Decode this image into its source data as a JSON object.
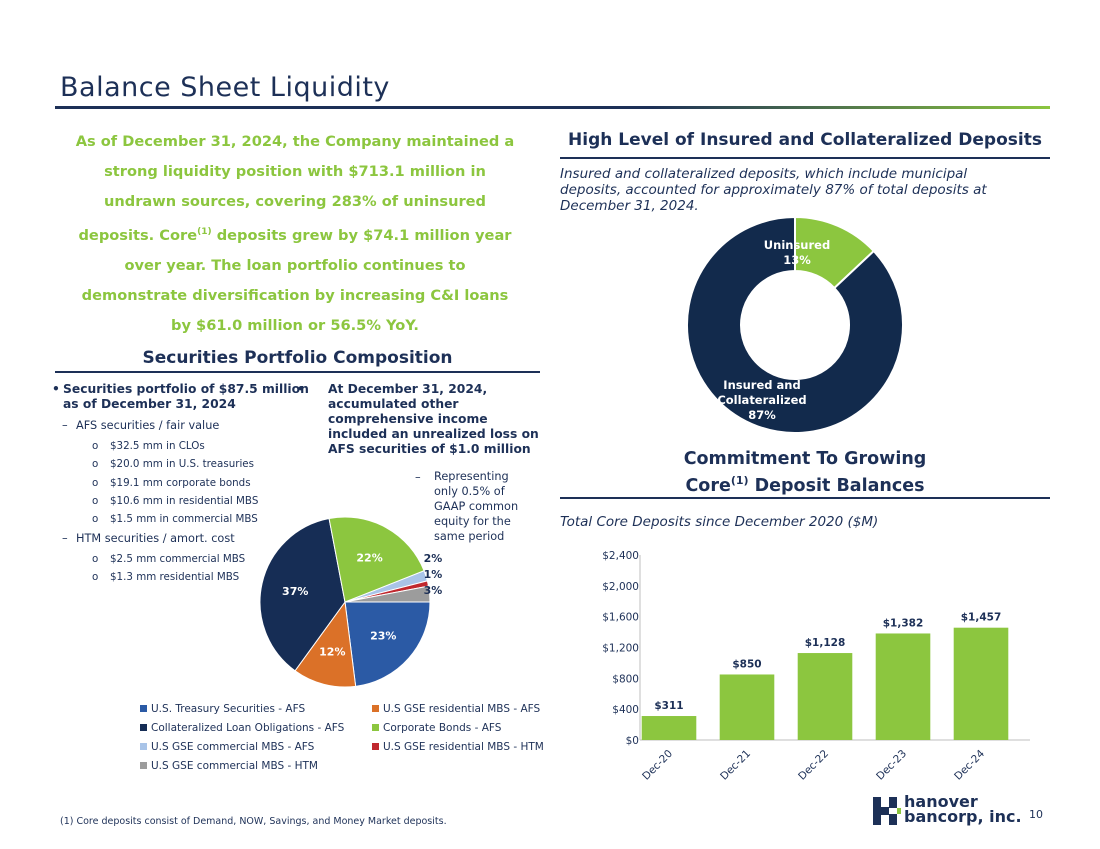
{
  "title": "Balance Sheet Liquidity",
  "intro": {
    "part1": "As of December 31, 2024, the Company maintained a strong liquidity position with $713.1 million in undrawn sources, covering 283% of uninsured deposits. Core",
    "sup": "(1)",
    "part2": " deposits grew by $74.1 million year over year. The loan portfolio continues to demonstrate diversification by increasing C&I loans by $61.0 million or 56.5% YoY."
  },
  "insured": {
    "heading": "High Level of Insured and Collateralized Deposits",
    "description": "Insured and collateralized deposits, which include municipal deposits, accounted for approximately 87% of total deposits at December 31, 2024.",
    "chart_data": {
      "type": "pie",
      "title": "High Level of Insured and Collateralized Deposits",
      "slices": [
        {
          "label": "Uninsured",
          "value": 13,
          "label_text": "13%",
          "color": "#8cc63f"
        },
        {
          "label": "Insured and Collateralized",
          "value": 87,
          "label_text": "87%",
          "color": "#122a4c"
        }
      ]
    },
    "labels": {
      "uninsured_name": "Uninsured",
      "uninsured_pct": "13%",
      "insured_line1": "Insured and",
      "insured_line2": "Collateralized",
      "insured_pct": "87%"
    }
  },
  "securities": {
    "heading": "Securities Portfolio Composition",
    "bullet1_line1": "Securities portfolio of $87.5 million",
    "bullet1_line2": "as of December 31, 2024",
    "afs_header": "AFS securities / fair value",
    "afs_items": [
      "$32.5 mm in CLOs",
      "$20.0 mm in U.S. treasuries",
      "$19.1 mm corporate bonds",
      "$10.6 mm in residential MBS",
      "$1.5 mm in commercial MBS"
    ],
    "htm_header": "HTM securities / amort. cost",
    "htm_items": [
      "$2.5 mm commercial MBS",
      "$1.3 mm residential MBS"
    ],
    "bullet2_lines": [
      "At December 31, 2024,",
      "accumulated other",
      "comprehensive income",
      "included an unrealized loss on",
      "AFS securities of $1.0 million"
    ],
    "bullet2_sub_lines": [
      "Representing",
      "only 0.5% of",
      "GAAP common",
      "equity for the",
      "same period"
    ],
    "bullet_char": "•",
    "dash_char": "–",
    "circle_char": "o",
    "chart_data": {
      "type": "pie",
      "slices": [
        {
          "label": "U.S. Treasury Securities - AFS",
          "value": 23,
          "label_text": "23%",
          "color": "#2b5aa5"
        },
        {
          "label": "U.S GSE residential MBS - AFS",
          "value": 12,
          "label_text": "12%",
          "color": "#db7128"
        },
        {
          "label": "Collateralized Loan Obligations - AFS",
          "value": 37,
          "label_text": "37%",
          "color": "#162d55"
        },
        {
          "label": "Corporate Bonds - AFS",
          "value": 22,
          "label_text": "22%",
          "color": "#8cc63f"
        },
        {
          "label": "U.S GSE commercial MBS - AFS",
          "value": 2,
          "label_text": "2%",
          "color": "#a9c4e8"
        },
        {
          "label": "U.S GSE residential MBS - HTM",
          "value": 1,
          "label_text": "1%",
          "color": "#c0282e"
        },
        {
          "label": "U.S GSE commercial MBS - HTM",
          "value": 3,
          "label_text": "3%",
          "color": "#9c9c9c"
        }
      ]
    }
  },
  "core": {
    "heading_line1": "Commitment To Growing",
    "heading_line2_pre": "Core",
    "heading_sup": "(1)",
    "heading_line2_post": " Deposit Balances",
    "subtitle": "Total Core Deposits since December 2020 ($M)",
    "chart_data": {
      "type": "bar",
      "title": "Total Core Deposits since December 2020 ($M)",
      "categories": [
        "Dec-20",
        "Dec-21",
        "Dec-22",
        "Dec-23",
        "Dec-24"
      ],
      "values": [
        311,
        850,
        1128,
        1382,
        1457
      ],
      "data_labels": [
        "$311",
        "$850",
        "$1,128",
        "$1,382",
        "$1,457"
      ],
      "ylim": [
        0,
        2400
      ],
      "yticks": [
        0,
        400,
        800,
        1200,
        1600,
        2000,
        2400
      ],
      "ytick_labels": [
        "$0",
        "$400",
        "$800",
        "$1,200",
        "$1,600",
        "$2,000",
        "$2,400"
      ],
      "bar_color": "#8cc63f"
    }
  },
  "footnote": "(1) Core deposits consist of Demand, NOW, Savings, and Money Market deposits.",
  "page_number": "10",
  "logo": {
    "line1": "hanover",
    "line2": "bancorp, inc.",
    "color": "#1d3057",
    "accent": "#8cc63f"
  }
}
